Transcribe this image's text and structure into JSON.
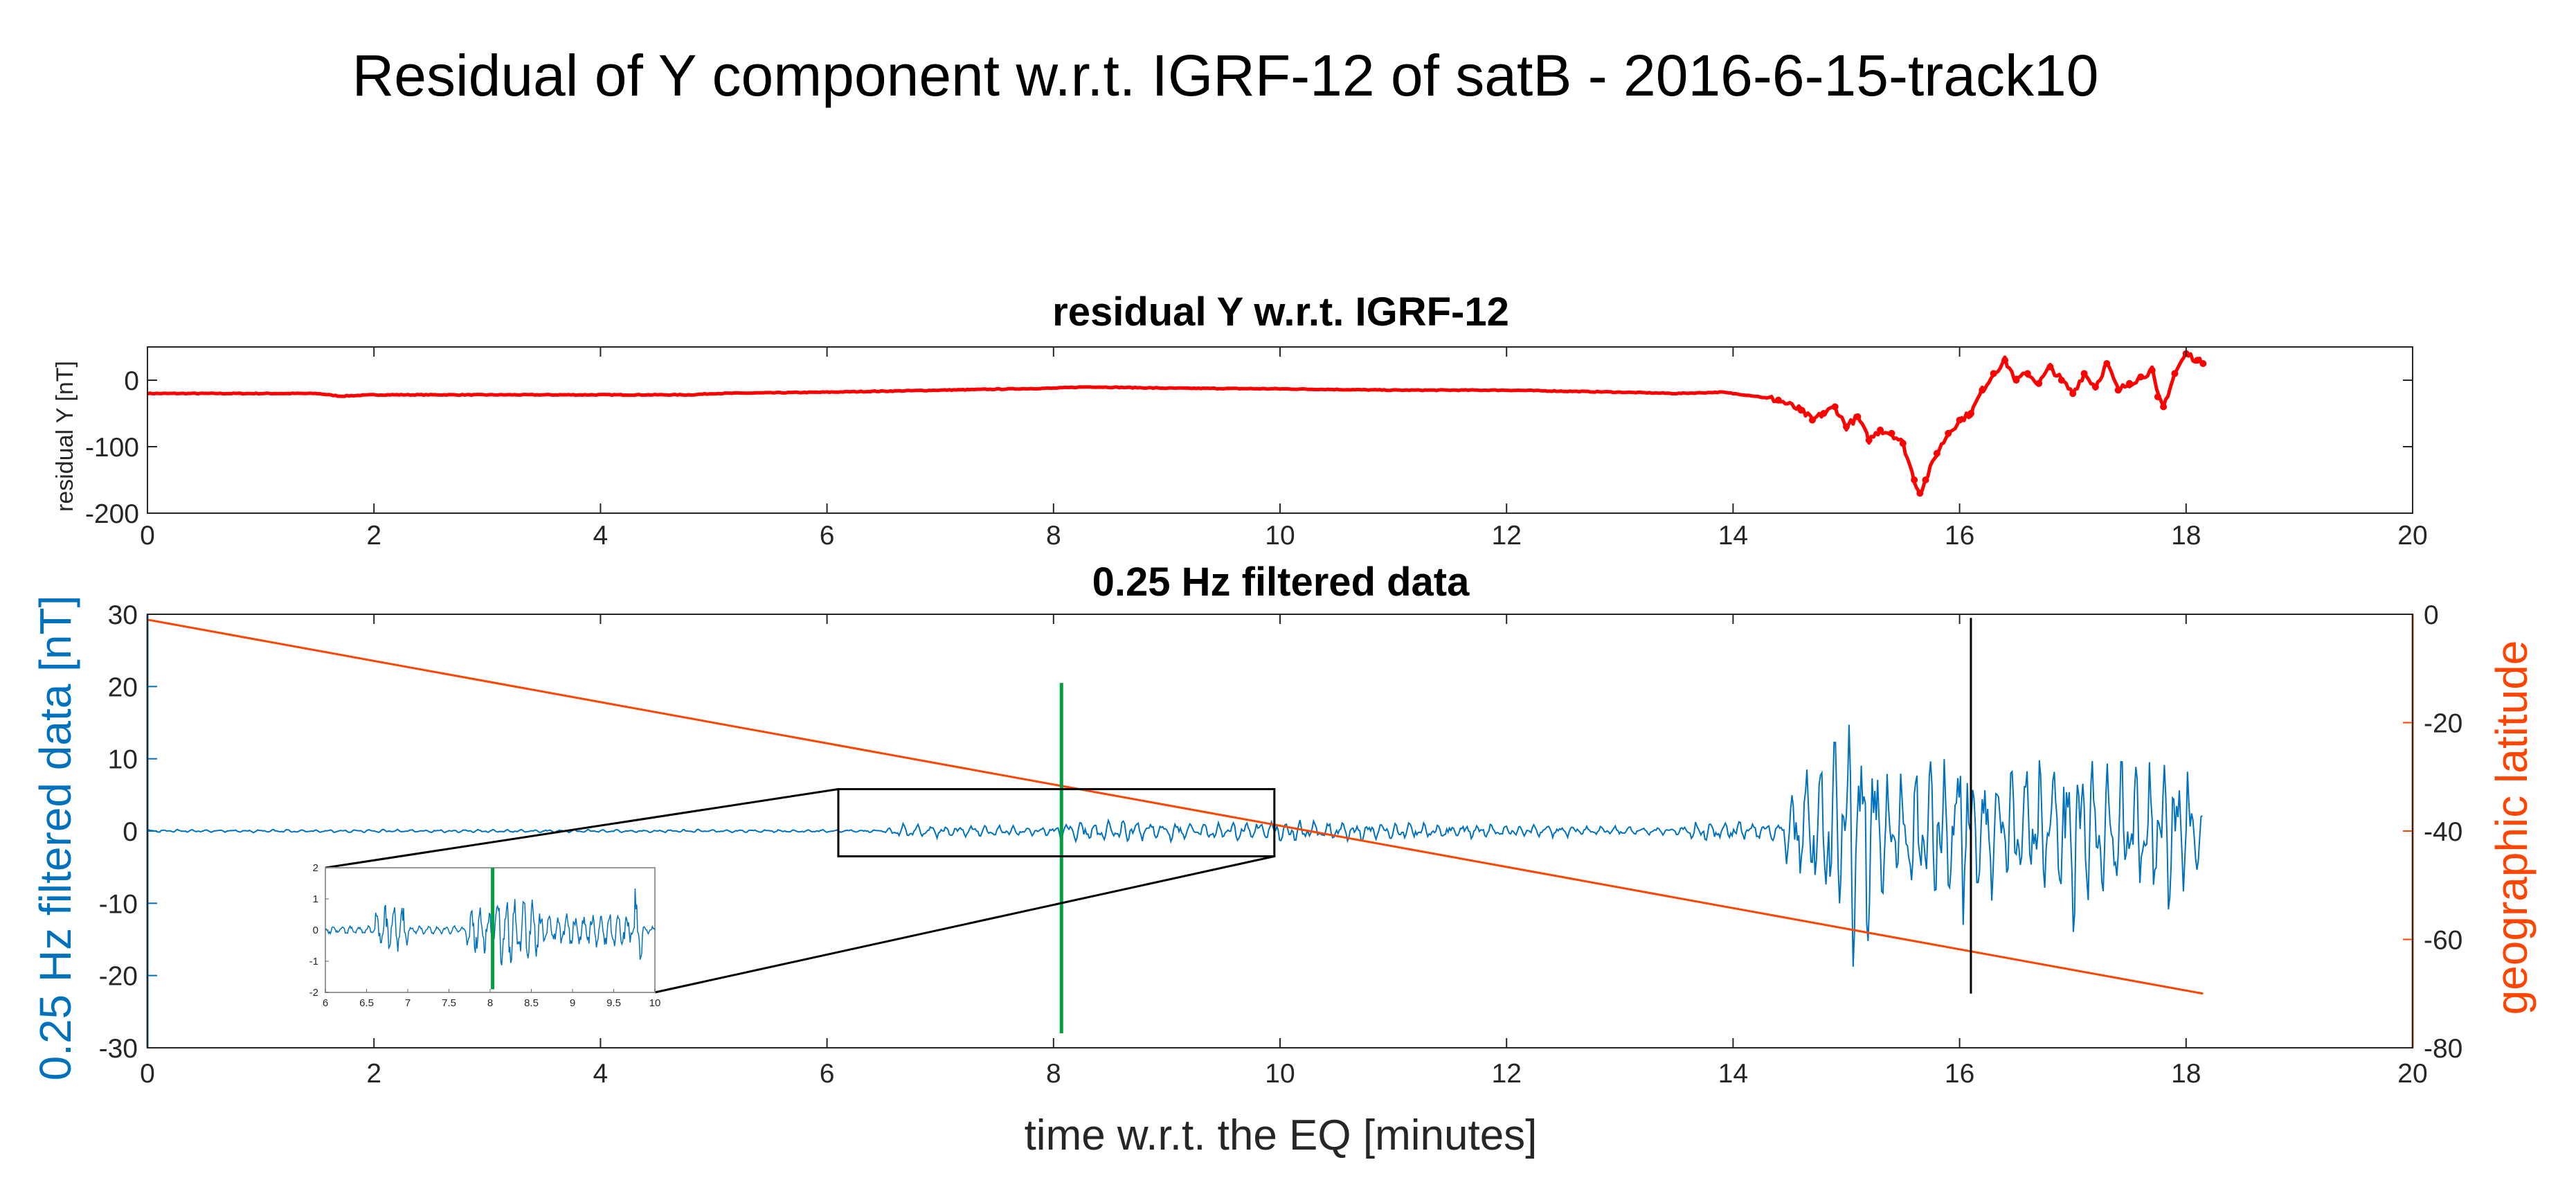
{
  "figure": {
    "suptitle": "Residual of Y component w.r.t. IGRF-12 of satB - 2016-6-15-track10"
  },
  "chart_data": [
    {
      "type": "scatter",
      "title": "residual Y w.r.t. IGRF-12",
      "xlabel": "",
      "ylabel": "residual Y [nT]",
      "xlim": [
        0,
        20
      ],
      "ylim": [
        -200,
        50
      ],
      "xticks": [
        "0",
        "2",
        "4",
        "6",
        "8",
        "10",
        "12",
        "14",
        "16",
        "18",
        "20"
      ],
      "yticks": [
        "0",
        "-100",
        "-200"
      ],
      "series": [
        {
          "name": "residual Y",
          "color": "#ff0000",
          "x": [
            0,
            0.5,
            1,
            1.5,
            1.7,
            2,
            3,
            4,
            4.8,
            5,
            6,
            7,
            8,
            8.3,
            9,
            10,
            11,
            12,
            13,
            13.5,
            13.9,
            14.2,
            14.4,
            14.6,
            14.7,
            14.8,
            14.9,
            15.0,
            15.1,
            15.2,
            15.3,
            15.4,
            15.5,
            15.6,
            15.65,
            15.7,
            15.8,
            15.9,
            16.0,
            16.1,
            16.2,
            16.3,
            16.4,
            16.5,
            16.6,
            16.7,
            16.8,
            16.9,
            17.0,
            17.1,
            17.2,
            17.3,
            17.4,
            17.5,
            17.6,
            17.7,
            17.75,
            17.8,
            17.9,
            18.0,
            18.1,
            18.15
          ],
          "y": [
            -20,
            -20,
            -20,
            -20,
            -24,
            -22,
            -22,
            -22,
            -22,
            -20,
            -18,
            -15,
            -12,
            -10,
            -12,
            -13,
            -15,
            -15,
            -18,
            -20,
            -18,
            -24,
            -30,
            -45,
            -60,
            -50,
            -40,
            -70,
            -55,
            -90,
            -75,
            -80,
            -95,
            -150,
            -170,
            -150,
            -110,
            -80,
            -60,
            -50,
            -15,
            10,
            30,
            0,
            10,
            -5,
            20,
            0,
            -20,
            10,
            -10,
            25,
            -15,
            -5,
            5,
            15,
            -25,
            -40,
            10,
            40,
            30,
            25
          ]
        }
      ]
    },
    {
      "type": "line",
      "title": "0.25 Hz filtered data",
      "xlabel": "time w.r.t. the EQ [minutes]",
      "ylabel": "0.25 Hz filtered data [nT]",
      "ylabel_right": "geographic latitude",
      "xlim": [
        0,
        20
      ],
      "ylim": [
        -30,
        30
      ],
      "ylim_right": [
        -80,
        0
      ],
      "xticks": [
        "0",
        "2",
        "4",
        "6",
        "8",
        "10",
        "12",
        "14",
        "16",
        "18",
        "20"
      ],
      "yticks": [
        "30",
        "20",
        "10",
        "0",
        "-10",
        "-20",
        "-30"
      ],
      "yticks_right": [
        "0",
        "-20",
        "-40",
        "-60",
        "-80"
      ],
      "series": [
        {
          "name": "0.25 Hz filtered data",
          "color": "#0072bd",
          "axis": "left",
          "envelope_x": [
            0,
            6.5,
            6.6,
            8.0,
            8.1,
            9.6,
            9.7,
            13.5,
            13.6,
            14.4,
            14.5,
            14.9,
            15.0,
            15.1,
            15.2,
            15.3,
            15.5,
            16.0,
            16.5,
            17.0,
            17.5,
            17.9,
            18.0,
            18.1,
            18.15
          ],
          "envelope_amp": [
            0.2,
            0.2,
            1.0,
            0.6,
            1.5,
            1.2,
            1.5,
            0.5,
            1.5,
            1.2,
            6,
            14,
            14,
            22,
            16,
            10,
            8,
            12,
            9,
            12,
            9,
            11,
            10,
            8,
            2
          ]
        },
        {
          "name": "geographic latitude",
          "color": "#ff4500",
          "axis": "right",
          "x": [
            0,
            18.15
          ],
          "y": [
            -1,
            -70
          ]
        }
      ],
      "markers": [
        {
          "name": "green marker",
          "color": "#00a040",
          "x": 8.07,
          "y_range": [
            -28,
            20.5
          ]
        },
        {
          "name": "black marker",
          "color": "#000000",
          "x": 16.1,
          "y_range": [
            -22.5,
            29.5
          ]
        }
      ],
      "zoom_box": {
        "x_range": [
          6.1,
          9.95
        ],
        "y_range": [
          -3.5,
          5.8
        ]
      },
      "inset": {
        "xlim": [
          6,
          10
        ],
        "ylim": [
          -2,
          2
        ],
        "xticks": [
          "6",
          "6.5",
          "7",
          "7.5",
          "8",
          "8.5",
          "9",
          "9.5",
          "10"
        ],
        "yticks": [
          "2",
          "1",
          "0",
          "-1",
          "-2"
        ],
        "green_marker_x": 8.03
      }
    }
  ]
}
